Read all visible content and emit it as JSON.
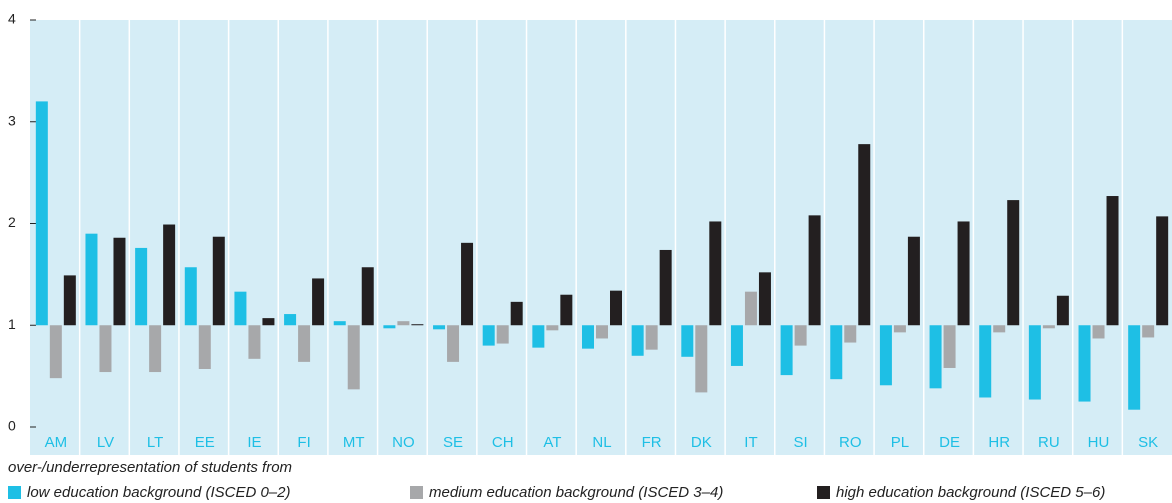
{
  "chart_data": {
    "type": "bar",
    "subtitle": "over-/underrepresentation of students from",
    "categories": [
      "AM",
      "LV",
      "LT",
      "EE",
      "IE",
      "FI",
      "MT",
      "NO",
      "SE",
      "CH",
      "AT",
      "NL",
      "FR",
      "DK",
      "IT",
      "SI",
      "RO",
      "PL",
      "DE",
      "HR",
      "RU",
      "HU",
      "SK"
    ],
    "baseline": 1,
    "series": [
      {
        "name": "low education background (ISCED 0–2)",
        "color": "#1ebfe5",
        "values": [
          3.2,
          1.9,
          1.76,
          1.57,
          1.33,
          1.11,
          1.04,
          0.97,
          0.96,
          0.8,
          0.78,
          0.77,
          0.7,
          0.69,
          0.6,
          0.51,
          0.47,
          0.41,
          0.38,
          0.29,
          0.27,
          0.25,
          0.17
        ]
      },
      {
        "name": "medium education background (ISCED 3–4)",
        "color": "#a7a8aa",
        "values": [
          0.48,
          0.54,
          0.54,
          0.57,
          0.67,
          0.64,
          0.37,
          1.04,
          0.64,
          0.82,
          0.95,
          0.87,
          0.76,
          0.34,
          1.33,
          0.8,
          0.83,
          0.93,
          0.58,
          0.93,
          0.97,
          0.87,
          0.88
        ]
      },
      {
        "name": "high education background (ISCED 5–6)",
        "color": "#231f20",
        "values": [
          1.49,
          1.86,
          1.99,
          1.87,
          1.07,
          1.46,
          1.57,
          1.01,
          1.81,
          1.23,
          1.3,
          1.34,
          1.74,
          2.02,
          1.52,
          2.08,
          2.78,
          1.87,
          2.02,
          2.23,
          1.29,
          2.27,
          2.07
        ]
      }
    ],
    "ylim": [
      0,
      4
    ],
    "yticks": [
      0,
      1,
      2,
      3,
      4
    ],
    "background": "#d5edf6"
  }
}
